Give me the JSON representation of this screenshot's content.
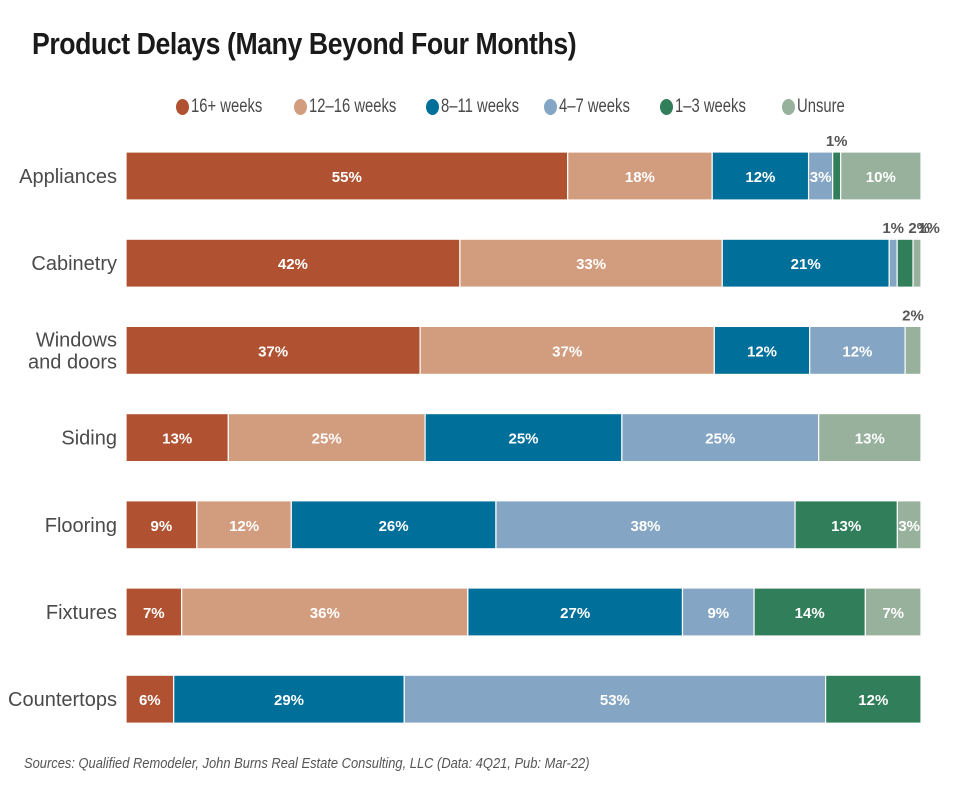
{
  "chart_data": {
    "type": "bar",
    "orientation": "horizontal",
    "stacked": true,
    "normalized": true,
    "title": "Product Delays (Many Beyond Four Months)",
    "xlabel": "",
    "ylabel": "",
    "legend_position": "top",
    "grid": false,
    "unit": "%",
    "categories": [
      "Appliances",
      "Cabinetry",
      "Windows and doors",
      "Siding",
      "Flooring",
      "Fixtures",
      "Countertops"
    ],
    "category_lines": [
      [
        "Appliances"
      ],
      [
        "Cabinetry"
      ],
      [
        "Windows",
        "and doors"
      ],
      [
        "Siding"
      ],
      [
        "Flooring"
      ],
      [
        "Fixtures"
      ],
      [
        "Countertops"
      ]
    ],
    "series": [
      {
        "name": "16+ weeks",
        "color": "#b05232",
        "values": [
          55,
          42,
          37,
          13,
          9,
          7,
          6
        ]
      },
      {
        "name": "12-16 weeks",
        "color": "#d29d7e",
        "values": [
          18,
          33,
          37,
          25,
          12,
          36,
          0
        ]
      },
      {
        "name": "8-11 weeks",
        "color": "#006f9a",
        "values": [
          12,
          21,
          12,
          25,
          26,
          27,
          29
        ]
      },
      {
        "name": "4-7 weeks",
        "color": "#84a5c3",
        "values": [
          3,
          1,
          12,
          25,
          38,
          9,
          53
        ]
      },
      {
        "name": "1-3 weeks",
        "color": "#317e5b",
        "values": [
          1,
          2,
          0,
          0,
          13,
          14,
          12
        ]
      },
      {
        "name": "Unsure",
        "color": "#98b19c",
        "values": [
          10,
          1,
          2,
          13,
          3,
          7,
          0
        ]
      }
    ],
    "legend": [
      "16+ weeks",
      "12–16 weeks",
      "8–11 weeks",
      "4–7 weeks",
      "1–3 weeks",
      "Unsure"
    ]
  },
  "source": "Sources: Qualified Remodeler, John Burns Real Estate Consulting, LLC (Data: 4Q21, Pub: Mar-22)"
}
